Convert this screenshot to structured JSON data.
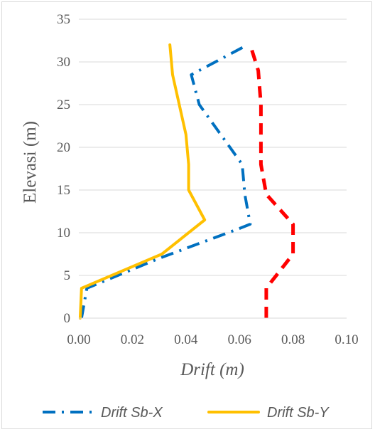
{
  "chart_data": {
    "type": "line",
    "xlabel": "Drift (m)",
    "ylabel": "Elevasi (m)",
    "xlim": [
      0,
      0.1
    ],
    "ylim": [
      0,
      35
    ],
    "x_ticks": [
      "0.00",
      "0.02",
      "0.04",
      "0.06",
      "0.08",
      "0.10"
    ],
    "y_ticks": [
      "0",
      "5",
      "10",
      "15",
      "20",
      "25",
      "30",
      "35"
    ],
    "grid": "horizontal",
    "legend_position": "bottom",
    "series": [
      {
        "name": "Drift Sb-X",
        "color": "#0070C0",
        "style": "dash-dot",
        "points": [
          [
            0.001,
            0
          ],
          [
            0.003,
            3.5
          ],
          [
            0.03,
            7
          ],
          [
            0.06,
            10.5
          ],
          [
            0.064,
            11
          ],
          [
            0.062,
            14.5
          ],
          [
            0.061,
            18
          ],
          [
            0.045,
            25
          ],
          [
            0.042,
            28.5
          ],
          [
            0.063,
            32
          ]
        ]
      },
      {
        "name": "Drift Sb-Y",
        "color": "#FFC000",
        "style": "solid",
        "points": [
          [
            0.0005,
            0
          ],
          [
            0.001,
            3.5
          ],
          [
            0.031,
            7.5
          ],
          [
            0.047,
            11.5
          ],
          [
            0.041,
            15
          ],
          [
            0.041,
            18
          ],
          [
            0.04,
            21.5
          ],
          [
            0.035,
            28.5
          ],
          [
            0.034,
            32
          ]
        ]
      },
      {
        "name": "",
        "color": "#FF0000",
        "style": "dashed",
        "points": [
          [
            0.07,
            0
          ],
          [
            0.07,
            3.5
          ],
          [
            0.08,
            7.5
          ],
          [
            0.08,
            11
          ],
          [
            0.07,
            14.5
          ],
          [
            0.068,
            18
          ],
          [
            0.068,
            21.5
          ],
          [
            0.068,
            25
          ],
          [
            0.067,
            29
          ],
          [
            0.064,
            32
          ]
        ]
      }
    ]
  }
}
